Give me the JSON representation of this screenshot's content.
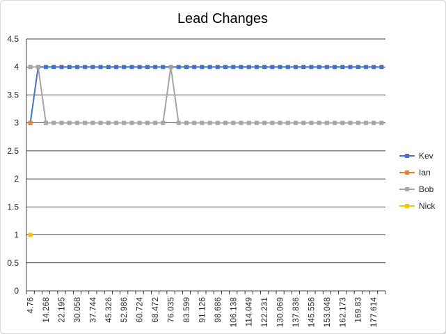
{
  "chart_data": {
    "type": "line",
    "title": "Lead Changes",
    "xlabel": "",
    "ylabel": "",
    "ylim": [
      0,
      4.5
    ],
    "yticks": [
      "0",
      "0.5",
      "1",
      "1.5",
      "2",
      "2.5",
      "3",
      "3.5",
      "4",
      "4.5"
    ],
    "grid": true,
    "legend_position": "right",
    "xtick_labels": [
      "4.76",
      "14.268",
      "22.195",
      "30.058",
      "37.744",
      "45.326",
      "52.986",
      "60.724",
      "68.472",
      "76.035",
      "83.599",
      "91.126",
      "98.686",
      "106.138",
      "114.049",
      "122.231",
      "130.069",
      "137.836",
      "145.556",
      "153.048",
      "162.173",
      "169.83",
      "177.614"
    ],
    "num_points": 46,
    "series": [
      {
        "name": "Kev",
        "color": "#4472c4",
        "values": [
          3,
          4,
          4,
          4,
          4,
          4,
          4,
          4,
          4,
          4,
          4,
          4,
          4,
          4,
          4,
          4,
          4,
          4,
          4,
          4,
          4,
          4,
          4,
          4,
          4,
          4,
          4,
          4,
          4,
          4,
          4,
          4,
          4,
          4,
          4,
          4,
          4,
          4,
          4,
          4,
          4,
          4,
          4,
          4,
          4,
          4
        ]
      },
      {
        "name": "Ian",
        "color": "#ed7d31",
        "values": [
          3,
          null,
          null,
          null,
          null,
          null,
          null,
          null,
          null,
          null,
          null,
          null,
          null,
          null,
          null,
          null,
          null,
          null,
          null,
          null,
          null,
          null,
          null,
          null,
          null,
          null,
          null,
          null,
          null,
          null,
          null,
          null,
          null,
          null,
          null,
          null,
          null,
          null,
          null,
          null,
          null,
          null,
          null,
          null,
          null,
          null
        ]
      },
      {
        "name": "Bob",
        "color": "#a5a5a5",
        "values": [
          4,
          4,
          3,
          3,
          3,
          3,
          3,
          3,
          3,
          3,
          3,
          3,
          3,
          3,
          3,
          3,
          3,
          3,
          4,
          3,
          3,
          3,
          3,
          3,
          3,
          3,
          3,
          3,
          3,
          3,
          3,
          3,
          3,
          3,
          3,
          3,
          3,
          3,
          3,
          3,
          3,
          3,
          3,
          3,
          3,
          3
        ]
      },
      {
        "name": "Nick",
        "color": "#ffc000",
        "values": [
          1,
          null,
          null,
          null,
          null,
          null,
          null,
          null,
          null,
          null,
          null,
          null,
          null,
          null,
          null,
          null,
          null,
          null,
          null,
          null,
          null,
          null,
          null,
          null,
          null,
          null,
          null,
          null,
          null,
          null,
          null,
          null,
          null,
          null,
          null,
          null,
          null,
          null,
          null,
          null,
          null,
          null,
          null,
          null,
          null,
          null
        ]
      }
    ]
  }
}
